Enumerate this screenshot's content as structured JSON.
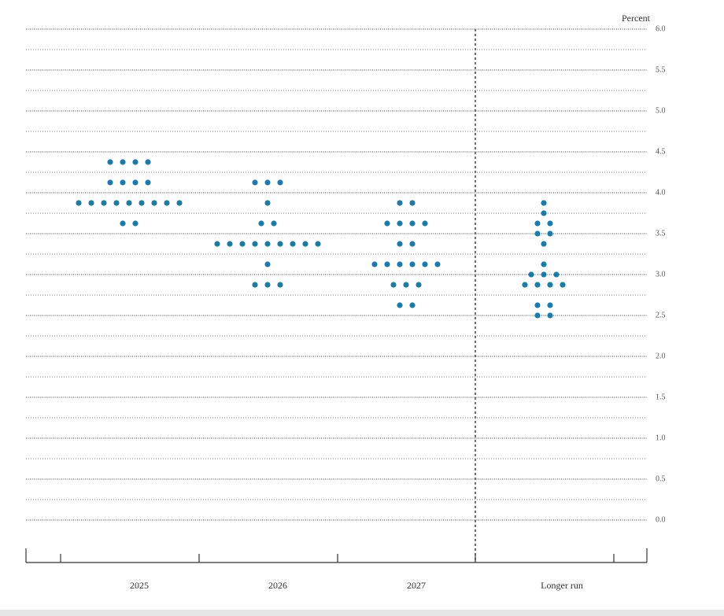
{
  "chart_data": {
    "type": "dot",
    "y_axis_label": "Percent",
    "categories": [
      "2025",
      "2026",
      "2027",
      "Longer run"
    ],
    "values": [
      [
        4.375,
        4.375,
        4.375,
        4.375,
        4.125,
        4.125,
        4.125,
        4.125,
        3.875,
        3.875,
        3.875,
        3.875,
        3.875,
        3.875,
        3.875,
        3.875,
        3.875,
        3.625,
        3.625
      ],
      [
        4.125,
        4.125,
        4.125,
        3.875,
        3.625,
        3.625,
        3.375,
        3.375,
        3.375,
        3.375,
        3.375,
        3.375,
        3.375,
        3.375,
        3.375,
        3.125,
        2.875,
        2.875,
        2.875
      ],
      [
        3.875,
        3.875,
        3.625,
        3.625,
        3.625,
        3.625,
        3.375,
        3.375,
        3.125,
        3.125,
        3.125,
        3.125,
        3.125,
        3.125,
        2.875,
        2.875,
        2.875,
        2.625,
        2.625
      ],
      [
        3.875,
        3.75,
        3.625,
        3.625,
        3.5,
        3.5,
        3.375,
        3.125,
        3.0,
        3.0,
        3.0,
        2.875,
        2.875,
        2.875,
        2.875,
        2.625,
        2.625,
        2.5,
        2.5
      ]
    ],
    "color": "#1f7ba6",
    "ylim": [
      -0.375,
      6.0
    ],
    "yticks": [
      {
        "value": 0,
        "label": "0.0"
      },
      0.5,
      {
        "value": 1,
        "label": "1.0"
      },
      1.5,
      {
        "value": 2,
        "label": "2.0"
      },
      2.5,
      {
        "value": 3,
        "label": "3.0"
      },
      3.5,
      {
        "value": 4,
        "label": "4.0"
      },
      4.5,
      {
        "value": 5,
        "label": "5.0"
      },
      5.5,
      {
        "value": 6,
        "label": "6.0"
      }
    ],
    "minor_yticks": [
      0.25,
      0.75,
      1.25,
      1.75,
      2.25,
      2.75,
      3.25,
      3.75,
      4.25,
      4.75,
      5.25,
      5.75
    ],
    "grid": true
  }
}
